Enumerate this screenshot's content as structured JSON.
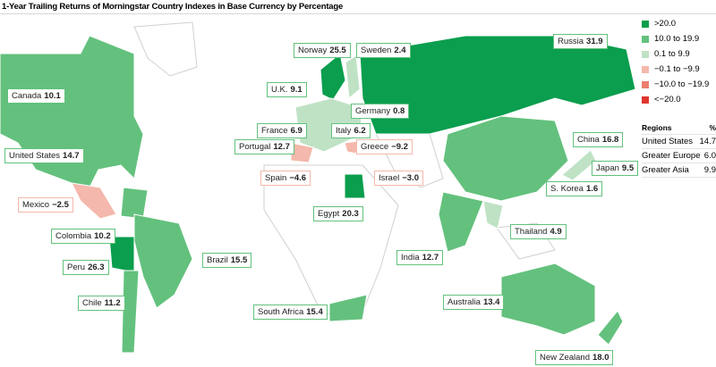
{
  "header": {
    "title": "1-Year Trailing Returns of Morningstar Country Indexes in Base Currency by Percentage"
  },
  "legend": [
    {
      "label": ">20.0",
      "color": "#0a9e4e"
    },
    {
      "label": "10.0 to 19.9",
      "color": "#63c17d"
    },
    {
      "label": "0.1 to 9.9",
      "color": "#bfe2c5"
    },
    {
      "label": "−0.1 to −9.9",
      "color": "#f4b8ac"
    },
    {
      "label": "−10.0 to −19.9",
      "color": "#ec7d6d"
    },
    {
      "label": "<−20.0",
      "color": "#e0352f"
    }
  ],
  "regions": {
    "title": "Regions",
    "unit": "%",
    "rows": [
      {
        "name": "United States",
        "value": 14.7
      },
      {
        "name": "Greater Europe",
        "value": {
          "value": 6.0,
          "label": "6.0"
        }
      },
      {
        "name": "Greater Asia",
        "value": 9.9
      }
    ]
  },
  "countries": [
    {
      "name": "Canada",
      "value": 10.1
    },
    {
      "name": "United States",
      "value": 14.7
    },
    {
      "name": "Mexico",
      "value": {
        "value": -2.5,
        "label": "−2.5"
      }
    },
    {
      "name": "Colombia",
      "value": 10.2
    },
    {
      "name": "Peru",
      "value": 26.3
    },
    {
      "name": "Chile",
      "value": 11.2
    },
    {
      "name": "Brazil",
      "value": 15.5
    },
    {
      "name": "Norway",
      "value": 25.5
    },
    {
      "name": "Sweden",
      "value": 2.4
    },
    {
      "name": "U.K.",
      "value": 9.1
    },
    {
      "name": "Germany",
      "value": 0.8
    },
    {
      "name": "France",
      "value": 6.9
    },
    {
      "name": "Italy",
      "value": 6.2
    },
    {
      "name": "Portugal",
      "value": 12.7
    },
    {
      "name": "Greece",
      "value": {
        "value": -9.2,
        "label": "−9.2"
      }
    },
    {
      "name": "Spain",
      "value": {
        "value": -4.6,
        "label": "−4.6"
      }
    },
    {
      "name": "Israel",
      "value": {
        "value": -3.0,
        "label": "−3.0"
      }
    },
    {
      "name": "Egypt",
      "value": 20.3
    },
    {
      "name": "Russia",
      "value": 31.9
    },
    {
      "name": "China",
      "value": 16.8
    },
    {
      "name": "Japan",
      "value": 9.5
    },
    {
      "name": "S. Korea",
      "value": 1.6
    },
    {
      "name": "Thailand",
      "value": 4.9
    },
    {
      "name": "India",
      "value": 12.7
    },
    {
      "name": "South Africa",
      "value": 15.4
    },
    {
      "name": "Australia",
      "value": 13.4
    },
    {
      "name": "New Zealand",
      "value": {
        "value": 18.0,
        "label": "18.0"
      }
    }
  ]
}
